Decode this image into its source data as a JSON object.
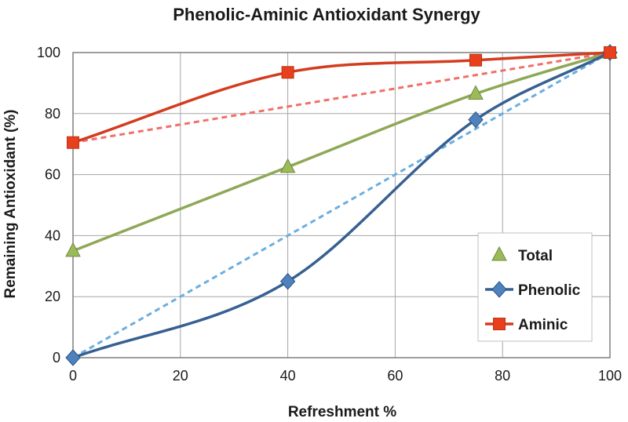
{
  "chart_data": {
    "type": "line",
    "title": "Phenolic-Aminic Antioxidant Synergy",
    "xlabel": "Refreshment %",
    "ylabel": "Remaining Antioxidant (%)",
    "xlim": [
      0,
      100
    ],
    "ylim": [
      0,
      100
    ],
    "xticks": [
      0,
      20,
      40,
      60,
      80,
      100
    ],
    "yticks": [
      0,
      20,
      40,
      60,
      80,
      100
    ],
    "grid": true,
    "legend_position": "right",
    "series": [
      {
        "name": "Total",
        "marker": "triangle",
        "color": "#8fa857",
        "marker_color": "#9bbb59",
        "x": [
          0,
          40,
          75,
          100
        ],
        "y": [
          35,
          62.5,
          86.5,
          100
        ]
      },
      {
        "name": "Phenolic",
        "marker": "diamond",
        "color": "#376092",
        "marker_color": "#4f81bd",
        "x": [
          0,
          40,
          75,
          100
        ],
        "y": [
          0,
          25,
          78,
          100
        ]
      },
      {
        "name": "Aminic",
        "marker": "square",
        "color": "#d33c1f",
        "marker_color": "#e8401c",
        "x": [
          0,
          40,
          75,
          100
        ],
        "y": [
          70.5,
          93.5,
          97.5,
          100
        ]
      }
    ],
    "reference_lines": [
      {
        "color": "#6aaee0",
        "x": [
          0,
          100
        ],
        "y": [
          0,
          100
        ]
      },
      {
        "color": "#f06f6a",
        "x": [
          0,
          100
        ],
        "y": [
          70.5,
          100
        ]
      }
    ]
  }
}
